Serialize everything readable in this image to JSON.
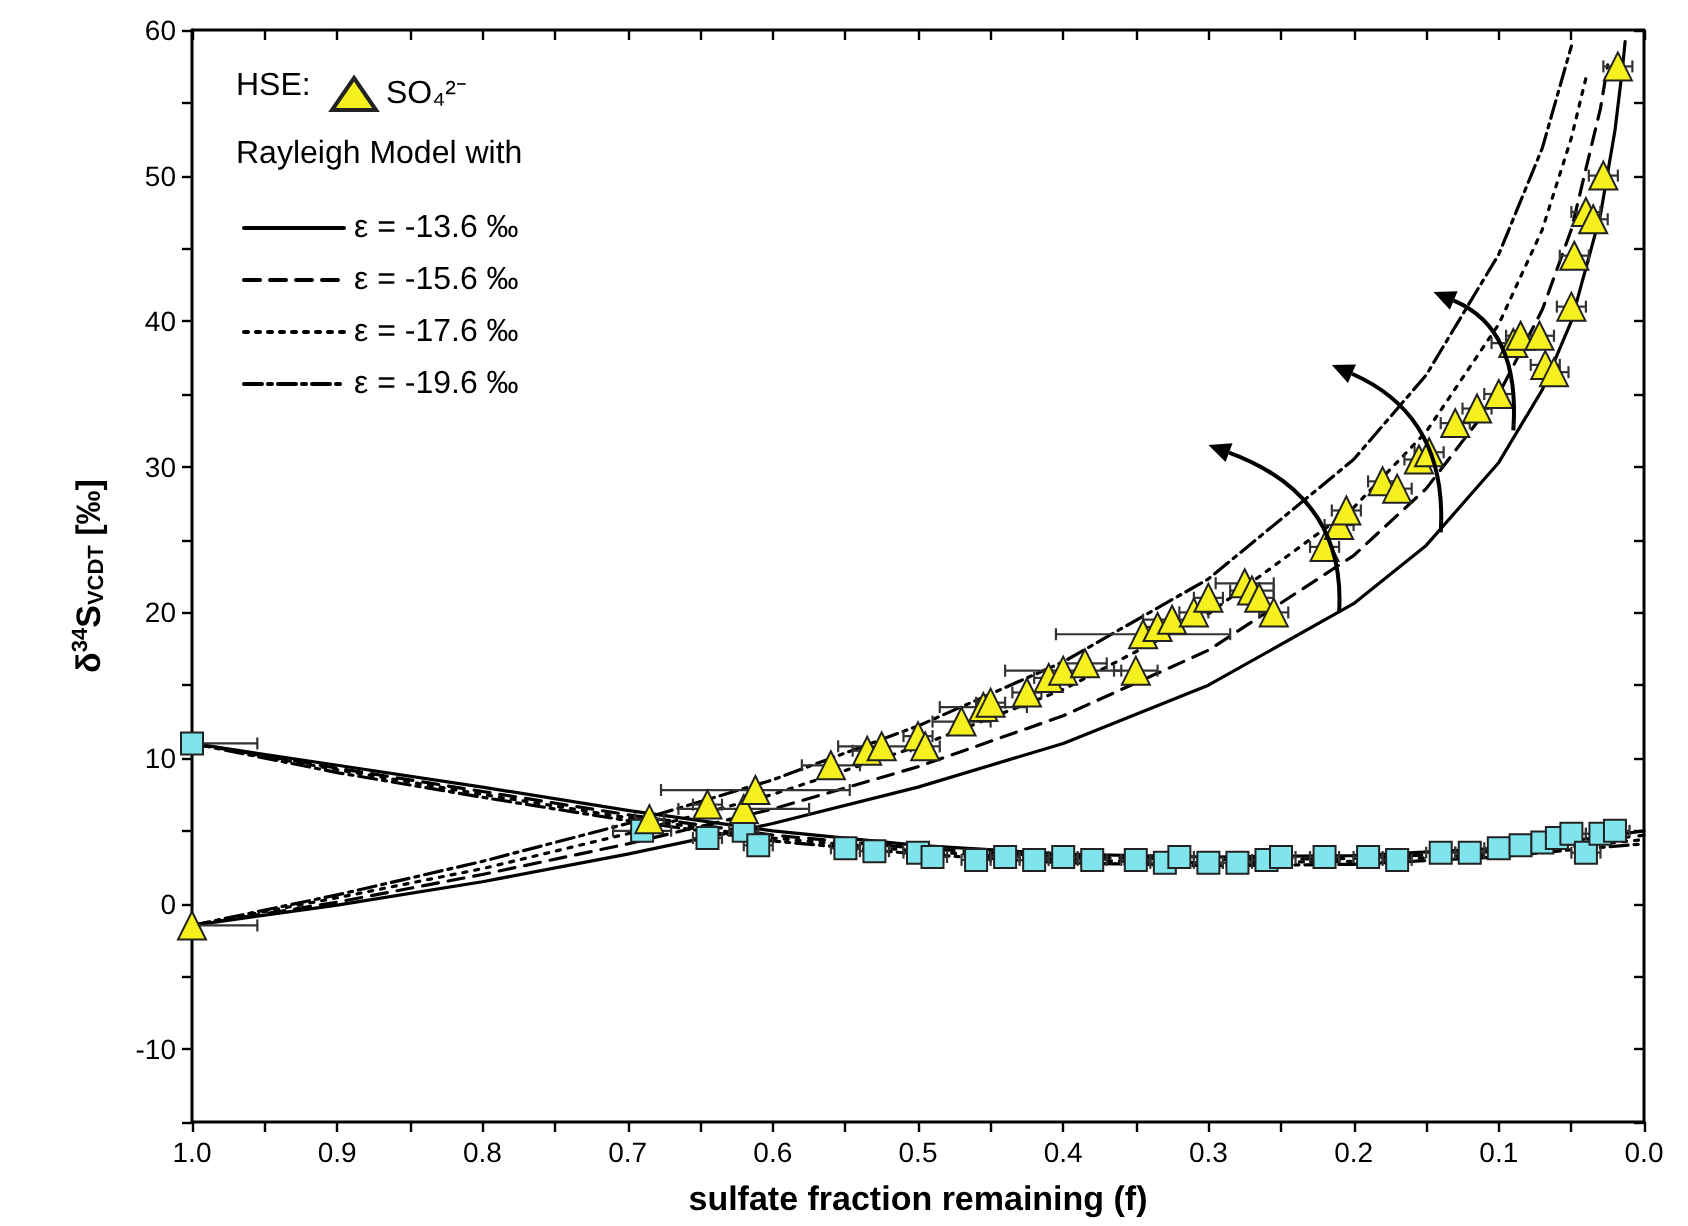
{
  "chart_data": {
    "type": "scatter",
    "xlabel": "sulfate fraction remaining (f)",
    "ylabel": "δ$^{34}$S$_{VCDT}$ [‰]",
    "legend_title": "HSE:",
    "annotations": [
      "Rayleigh Model with"
    ],
    "legend": "top left",
    "grid": false,
    "xlim": [
      1.0,
      0.0
    ],
    "xticks": [
      {
        "value": 1,
        "label": "1.0"
      },
      {
        "value": 0.95,
        "label": null
      },
      {
        "value": 0.9,
        "label": "0.9"
      },
      {
        "value": 0.85,
        "label": null
      },
      {
        "value": 0.8,
        "label": "0.8"
      },
      {
        "value": 0.75,
        "label": null
      },
      {
        "value": 0.7,
        "label": "0.7"
      },
      {
        "value": 0.65,
        "label": null
      },
      {
        "value": 0.6,
        "label": "0.6"
      },
      {
        "value": 0.55,
        "label": null
      },
      {
        "value": 0.5,
        "label": "0.5"
      },
      {
        "value": 0.45,
        "label": null
      },
      {
        "value": 0.4,
        "label": "0.4"
      },
      {
        "value": 0.35,
        "label": null
      },
      {
        "value": 0.3,
        "label": "0.3"
      },
      {
        "value": 0.25,
        "label": null
      },
      {
        "value": 0.2,
        "label": "0.2"
      },
      {
        "value": 0.15,
        "label": null
      },
      {
        "value": 0.1,
        "label": "0.1"
      },
      {
        "value": 0.05,
        "label": null
      },
      {
        "value": 0,
        "label": "0.0"
      }
    ],
    "ylim": [
      -15,
      60
    ],
    "yticks": [
      {
        "value": -15,
        "label": null
      },
      -10,
      {
        "value": -5,
        "label": null
      },
      0,
      {
        "value": 5,
        "label": null
      },
      10,
      {
        "value": 15,
        "label": null
      },
      20,
      {
        "value": 25,
        "label": null
      },
      30,
      {
        "value": 35,
        "label": null
      },
      40,
      {
        "value": 45,
        "label": null
      },
      50,
      {
        "value": 55,
        "label": null
      },
      60
    ],
    "series": [
      {
        "type": "line",
        "name": "ε = -13.6 ‰",
        "color": "#000000",
        "line_style": "solid",
        "marker": "none",
        "x": [
          1,
          0.9,
          0.8,
          0.7,
          0.6,
          0.5,
          0.4,
          0.3,
          0.2,
          0.15,
          0.1,
          0.07,
          0.05,
          0.03,
          0.02,
          0.015,
          0.013
        ],
        "values": [
          -1.5,
          -0.1,
          1.5,
          3.4,
          5.5,
          8.0,
          11.0,
          15.0,
          20.6,
          24.6,
          30.3,
          35.3,
          40.0,
          47.3,
          53.1,
          57.2,
          59.2
        ]
      },
      {
        "type": "line",
        "name": "ε = -15.6 ‰",
        "color": "#000000",
        "line_style": "dashed",
        "marker": "none",
        "x": [
          1,
          0.9,
          0.8,
          0.7,
          0.6,
          0.5,
          0.4,
          0.3,
          0.2,
          0.15,
          0.1,
          0.07,
          0.05,
          0.03,
          0.025
        ],
        "values": [
          -1.5,
          0.1,
          2.0,
          4.1,
          6.5,
          9.4,
          12.9,
          17.4,
          23.9,
          28.5,
          35.0,
          40.8,
          46.3,
          54.6,
          57.6
        ]
      },
      {
        "type": "line",
        "name": "ε = -17.6 ‰",
        "color": "#000000",
        "line_style": "dotted",
        "marker": "none",
        "x": [
          1,
          0.9,
          0.8,
          0.7,
          0.6,
          0.5,
          0.4,
          0.3,
          0.2,
          0.15,
          0.1,
          0.07,
          0.05,
          0.04
        ],
        "values": [
          -1.5,
          0.4,
          2.4,
          4.8,
          7.5,
          10.8,
          14.7,
          19.9,
          27.2,
          32.4,
          39.8,
          46.3,
          52.6,
          56.7
        ]
      },
      {
        "type": "line",
        "name": "ε = -19.6 ‰",
        "color": "#000000",
        "line_style": "dashdot",
        "marker": "none",
        "x": [
          1,
          0.9,
          0.8,
          0.7,
          0.6,
          0.5,
          0.4,
          0.3,
          0.2,
          0.15,
          0.1,
          0.07,
          0.05
        ],
        "values": [
          -1.5,
          0.6,
          2.9,
          5.5,
          8.5,
          12.2,
          16.6,
          22.3,
          30.5,
          36.3,
          44.6,
          51.9,
          58.9
        ]
      },
      {
        "type": "line",
        "color": "#000000",
        "line_style": "solid",
        "marker": "none",
        "x": [
          1,
          0.9,
          0.8,
          0.7,
          0.6,
          0.5,
          0.4,
          0.3,
          0.2,
          0.1,
          0.05,
          0
        ],
        "values": [
          11.0,
          9.5,
          8.0,
          6.4,
          5.0,
          4.0,
          3.4,
          3.2,
          3.3,
          3.8,
          4.3,
          5.0
        ]
      },
      {
        "type": "line",
        "color": "#000000",
        "line_style": "dashed",
        "marker": "none",
        "x": [
          1,
          0.9,
          0.8,
          0.7,
          0.6,
          0.5,
          0.4,
          0.3,
          0.2,
          0.1,
          0.05,
          0
        ],
        "values": [
          11.0,
          9.3,
          7.7,
          6.1,
          4.7,
          3.8,
          3.2,
          3.0,
          3.1,
          3.6,
          4.1,
          4.7
        ]
      },
      {
        "type": "line",
        "color": "#000000",
        "line_style": "dotted",
        "marker": "none",
        "x": [
          1,
          0.9,
          0.8,
          0.7,
          0.6,
          0.5,
          0.4,
          0.3,
          0.2,
          0.1,
          0.05,
          0
        ],
        "values": [
          11.0,
          9.2,
          7.5,
          5.9,
          4.5,
          3.6,
          3.0,
          2.8,
          2.9,
          3.4,
          3.9,
          4.4
        ]
      },
      {
        "type": "line",
        "color": "#000000",
        "line_style": "dashdot",
        "marker": "none",
        "x": [
          1,
          0.9,
          0.8,
          0.7,
          0.6,
          0.5,
          0.4,
          0.3,
          0.2,
          0.1,
          0.05,
          0
        ],
        "values": [
          11.0,
          9.0,
          7.3,
          5.7,
          4.3,
          3.4,
          2.8,
          2.6,
          2.7,
          3.2,
          3.7,
          4.1
        ]
      },
      {
        "color": "#80e4ec",
        "marker": "square",
        "x": [
          1.0,
          0.69,
          0.645,
          0.62,
          0.61,
          0.55,
          0.53,
          0.5,
          0.49,
          0.46,
          0.44,
          0.42,
          0.4,
          0.38,
          0.35,
          0.33,
          0.32,
          0.3,
          0.28,
          0.26,
          0.25,
          0.22,
          0.19,
          0.17,
          0.14,
          0.12,
          0.1,
          0.085,
          0.07,
          0.06,
          0.05,
          0.04,
          0.03,
          0.02
        ],
        "values": [
          11.0,
          5.0,
          4.5,
          5.0,
          4.0,
          3.8,
          3.6,
          3.5,
          3.2,
          3.0,
          3.2,
          3.0,
          3.2,
          3.0,
          3.0,
          2.8,
          3.2,
          2.8,
          2.8,
          3.0,
          3.2,
          3.2,
          3.2,
          3.0,
          3.5,
          3.5,
          3.8,
          4.0,
          4.2,
          4.5,
          4.8,
          3.5,
          4.8,
          5.0
        ],
        "xerrors": [
          [
            0.955,
            1.0
          ],
          0.02,
          0.01,
          0.01,
          0.01,
          0.01,
          0.01,
          0.01,
          0.01,
          0.01,
          0.01,
          0.01,
          0.01,
          0.01,
          0.01,
          0.01,
          0.01,
          0.01,
          0.01,
          0.01,
          0.01,
          0.01,
          0.01,
          0.01,
          0.01,
          0.01,
          0.01,
          0.01,
          0.01,
          0.01,
          0.01,
          0.01,
          0.01,
          0.01
        ]
      },
      {
        "name": "SO₄²⁻",
        "color": "#f5f01e",
        "marker": "triangle",
        "x": [
          1.0,
          0.685,
          0.645,
          0.62,
          0.612,
          0.56,
          0.535,
          0.525,
          0.5,
          0.495,
          0.47,
          0.455,
          0.45,
          0.425,
          0.41,
          0.4,
          0.385,
          0.35,
          0.345,
          0.335,
          0.325,
          0.31,
          0.3,
          0.275,
          0.27,
          0.265,
          0.255,
          0.22,
          0.21,
          0.205,
          0.18,
          0.17,
          0.155,
          0.148,
          0.13,
          0.115,
          0.1,
          0.09,
          0.085,
          0.072,
          0.068,
          0.062,
          0.05,
          0.048,
          0.04,
          0.035,
          0.028,
          0.018
        ],
        "values": [
          -1.5,
          5.8,
          6.8,
          6.5,
          7.8,
          9.5,
          10.5,
          10.8,
          11.5,
          10.8,
          12.5,
          13.5,
          13.8,
          14.5,
          15.5,
          16.0,
          16.5,
          16.0,
          18.5,
          19.0,
          19.5,
          20.0,
          21.0,
          22.0,
          21.5,
          21.0,
          20.0,
          24.5,
          26.0,
          27.0,
          29.0,
          28.5,
          30.5,
          31.0,
          33.0,
          34.0,
          35.0,
          38.5,
          39.0,
          39.0,
          37.0,
          36.5,
          41.0,
          44.5,
          47.5,
          47.0,
          50.0,
          57.5
        ],
        "xerrors": [
          [
            0.955,
            1.0
          ],
          0.01,
          0.01,
          0.045,
          0.065,
          0.02,
          0.01,
          0.03,
          0.01,
          0.01,
          0.02,
          0.03,
          0.01,
          0.01,
          0.01,
          0.04,
          0.015,
          0.015,
          0.06,
          0.01,
          0.02,
          0.01,
          0.01,
          0.02,
          0.015,
          0.01,
          0.01,
          0.01,
          0.01,
          0.01,
          0.01,
          0.01,
          0.01,
          0.01,
          0.01,
          0.01,
          0.01,
          0.015,
          0.01,
          0.01,
          0.01,
          0.01,
          0.01,
          0.01,
          0.01,
          0.01,
          0.01,
          0.01
        ]
      }
    ]
  }
}
